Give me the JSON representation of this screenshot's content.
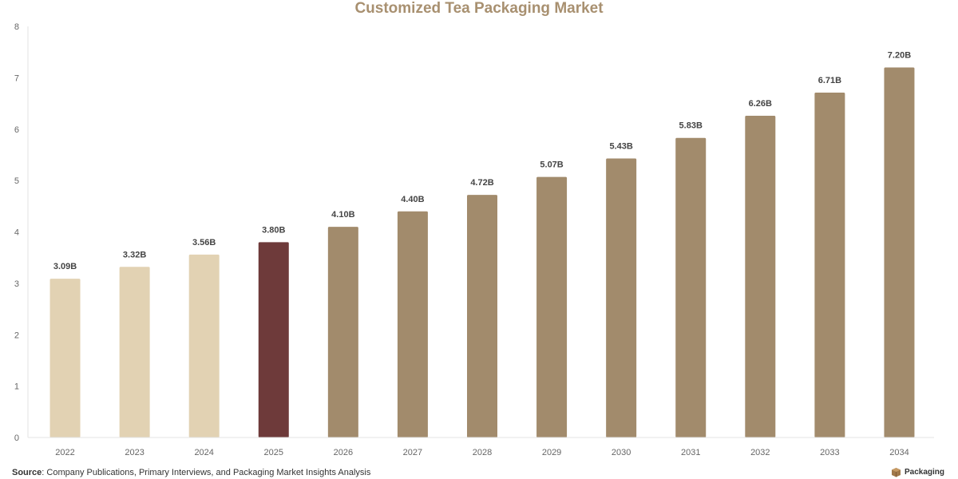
{
  "chart_data": {
    "type": "bar",
    "title": "Customized Tea Packaging Market",
    "xlabel": "",
    "ylabel": "",
    "categories": [
      "2022",
      "2023",
      "2024",
      "2025",
      "2026",
      "2027",
      "2028",
      "2029",
      "2030",
      "2031",
      "2032",
      "2033",
      "2034"
    ],
    "values": [
      3.09,
      3.32,
      3.56,
      3.8,
      4.1,
      4.4,
      4.72,
      5.07,
      5.43,
      5.83,
      6.26,
      6.71,
      7.2
    ],
    "data_labels": [
      "3.09B",
      "3.32B",
      "3.56B",
      "3.80B",
      "4.10B",
      "4.40B",
      "4.72B",
      "5.07B",
      "5.43B",
      "5.83B",
      "6.26B",
      "6.71B",
      "7.20B"
    ],
    "bar_colors": [
      "#e2d2b3",
      "#e2d2b3",
      "#e2d2b3",
      "#6e3a3a",
      "#a28b6c",
      "#a28b6c",
      "#a28b6c",
      "#a28b6c",
      "#a28b6c",
      "#a28b6c",
      "#a28b6c",
      "#a28b6c",
      "#a28b6c"
    ],
    "ylim": [
      0,
      8
    ],
    "yticks": [
      "0",
      "1",
      "2",
      "3",
      "4",
      "5",
      "6",
      "7",
      "8"
    ],
    "grid": false,
    "legend": "none"
  },
  "footer": {
    "source_label": "Source",
    "source_text": ": Company Publications, Primary Interviews, and Packaging Market Insights Analysis",
    "brand_text": "Packaging"
  },
  "colors": {
    "title": "#a89070",
    "brand_logo": "#a0784a"
  }
}
